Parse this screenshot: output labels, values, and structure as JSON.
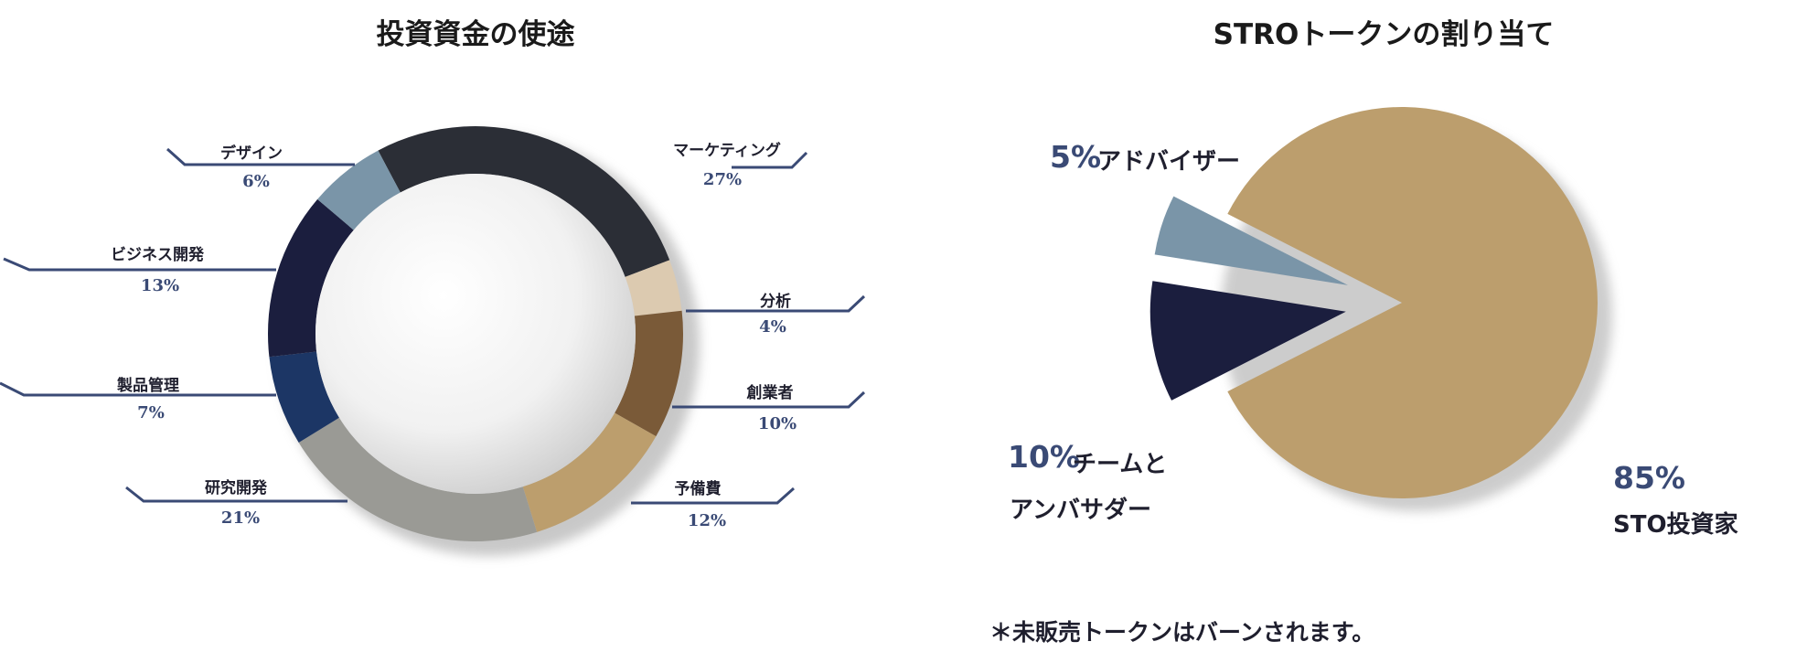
{
  "chart_data": [
    {
      "type": "pie",
      "title": "投資資金の使途",
      "categories": [
        "マーケティング",
        "分析",
        "創業者",
        "予備費",
        "研究開発",
        "製品管理",
        "ビジネス開発",
        "デザイン"
      ],
      "values": [
        27,
        4,
        10,
        12,
        21,
        7,
        13,
        6
      ],
      "value_labels": [
        "27%",
        "4%",
        "10%",
        "12%",
        "21%",
        "7%",
        "13%",
        "6%"
      ],
      "colors": [
        "#2b2e36",
        "#dccab0",
        "#7a5a38",
        "#bc9e6d",
        "#9a9a95",
        "#1c3665",
        "#1b1e3e",
        "#7a95a8"
      ],
      "style": "donut"
    },
    {
      "type": "pie",
      "title": "STROトークンの割り当て",
      "categories": [
        "STO投資家",
        "アドバイザー",
        "チームとアンバサダー"
      ],
      "values": [
        85,
        5,
        10
      ],
      "value_labels": [
        "85%",
        "5%",
        "10%"
      ],
      "label_lines": [
        [
          "STO投資家"
        ],
        [
          "アドバイザー"
        ],
        [
          "チームと",
          "アンバサダー"
        ]
      ],
      "colors": [
        "#bc9e6d",
        "#7a95a8",
        "#1b1e3e"
      ],
      "exploded": [
        false,
        true,
        true
      ]
    }
  ],
  "footnote": "＊未販売トークンはバーンされます。"
}
